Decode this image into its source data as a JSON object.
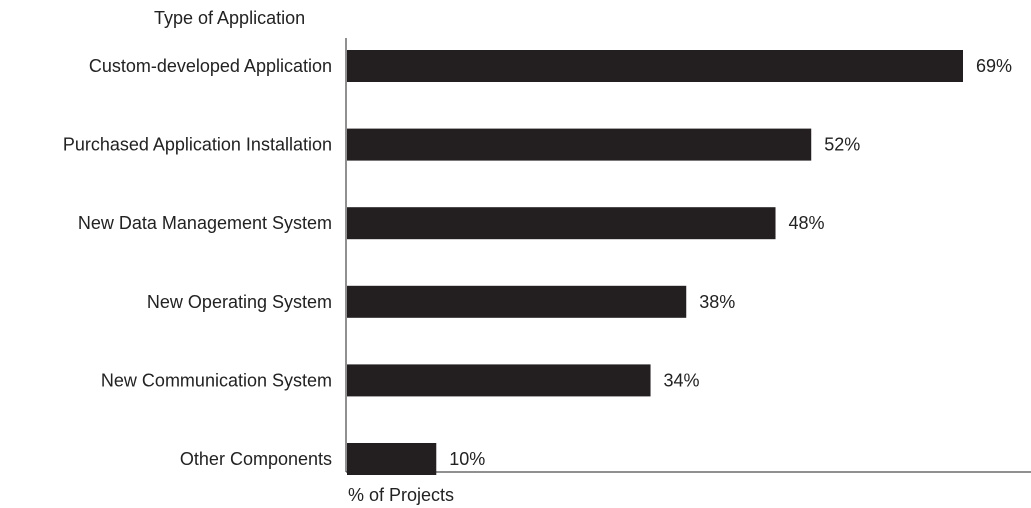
{
  "chart_data": {
    "type": "bar",
    "orientation": "horizontal",
    "ylabel": "Type of Application",
    "xlabel": "% of Projects",
    "categories": [
      "Custom-developed Application",
      "Purchased Application Installation",
      "New Data Management System",
      "New Operating System",
      "New Communication System",
      "Other Components"
    ],
    "values": [
      69,
      52,
      48,
      38,
      34,
      10
    ],
    "value_labels": [
      "69%",
      "52%",
      "48%",
      "38%",
      "34%",
      "10%"
    ],
    "xlim": [
      0,
      76
    ],
    "grid": false,
    "bar_color": "#231f20"
  }
}
